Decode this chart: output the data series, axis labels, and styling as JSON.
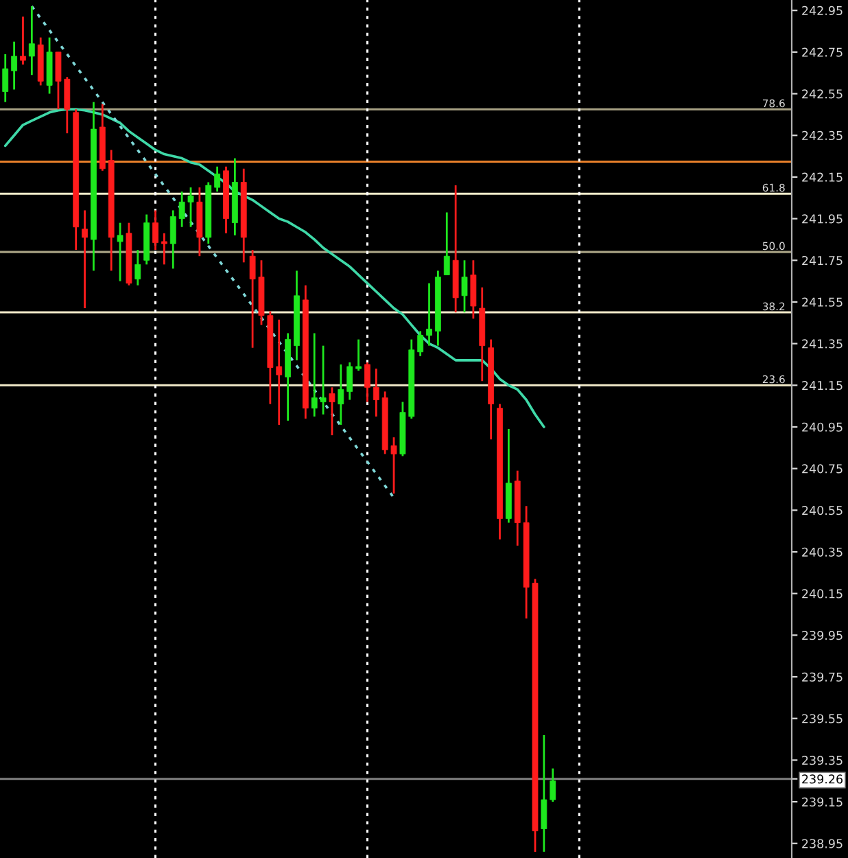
{
  "chart_data": {
    "type": "candlestick",
    "categories": [
      null,
      null,
      null,
      null,
      null,
      null,
      null,
      null,
      null,
      null,
      null,
      null,
      null,
      null,
      null,
      null,
      null,
      null,
      null,
      null,
      null,
      null,
      null,
      null,
      null,
      null,
      null,
      null,
      null,
      null,
      null,
      null,
      null,
      null,
      null,
      null,
      null,
      null,
      null,
      null,
      null,
      null,
      null,
      null,
      null,
      null,
      null,
      null,
      null,
      null,
      null,
      null,
      null,
      null,
      null,
      null,
      null,
      null,
      null,
      null,
      null,
      null,
      null
    ],
    "ohlc": [
      [
        242.56,
        242.74,
        242.51,
        242.67
      ],
      [
        242.66,
        242.8,
        242.57,
        242.73
      ],
      [
        242.73,
        242.92,
        242.69,
        242.71
      ],
      [
        242.73,
        242.97,
        242.64,
        242.79
      ],
      [
        242.785,
        242.82,
        242.59,
        242.61
      ],
      [
        242.59,
        242.82,
        242.55,
        242.75
      ],
      [
        242.75,
        242.75,
        242.475,
        242.61
      ],
      [
        242.62,
        242.63,
        242.36,
        242.475
      ],
      [
        242.46,
        242.475,
        241.8,
        241.91
      ],
      [
        241.9,
        241.99,
        241.52,
        241.86
      ],
      [
        241.85,
        242.51,
        241.7,
        242.38
      ],
      [
        242.39,
        242.5,
        242.18,
        242.19
      ],
      [
        242.23,
        242.28,
        241.7,
        241.86
      ],
      [
        241.84,
        241.93,
        241.65,
        241.87
      ],
      [
        241.88,
        241.93,
        241.63,
        241.64
      ],
      [
        241.66,
        241.8,
        241.63,
        241.73
      ],
      [
        241.75,
        241.97,
        241.73,
        241.93
      ],
      [
        241.93,
        241.99,
        241.8,
        241.835
      ],
      [
        241.84,
        241.88,
        241.73,
        241.83
      ],
      [
        241.83,
        241.99,
        241.71,
        241.96
      ],
      [
        241.95,
        242.08,
        241.91,
        242.03
      ],
      [
        242.03,
        242.1,
        241.91,
        242.06
      ],
      [
        242.03,
        242.1,
        241.77,
        241.86
      ],
      [
        241.86,
        242.125,
        241.83,
        242.11
      ],
      [
        242.1,
        242.2,
        242.08,
        242.165
      ],
      [
        242.18,
        242.2,
        241.88,
        241.95
      ],
      [
        241.93,
        242.24,
        241.87,
        242.125
      ],
      [
        242.125,
        242.19,
        241.74,
        241.86
      ],
      [
        241.77,
        241.8,
        241.33,
        241.66
      ],
      [
        241.67,
        241.75,
        241.44,
        241.485
      ],
      [
        241.485,
        241.505,
        241.06,
        241.235
      ],
      [
        241.24,
        241.465,
        240.96,
        241.2
      ],
      [
        241.19,
        241.4,
        240.98,
        241.37
      ],
      [
        241.34,
        241.7,
        241.27,
        241.58
      ],
      [
        241.56,
        241.63,
        240.99,
        241.04
      ],
      [
        241.04,
        241.4,
        241.0,
        241.09
      ],
      [
        241.07,
        241.34,
        241.01,
        241.09
      ],
      [
        241.11,
        241.14,
        240.91,
        241.07
      ],
      [
        241.06,
        241.25,
        240.96,
        241.13
      ],
      [
        241.12,
        241.26,
        241.08,
        241.24
      ],
      [
        241.23,
        241.37,
        241.22,
        241.24
      ],
      [
        241.25,
        241.26,
        241.07,
        241.14
      ],
      [
        241.14,
        241.23,
        241.0,
        241.08
      ],
      [
        241.09,
        241.12,
        240.82,
        240.84
      ],
      [
        240.86,
        240.9,
        240.63,
        240.82
      ],
      [
        240.82,
        241.07,
        240.81,
        241.02
      ],
      [
        241.0,
        241.37,
        240.99,
        241.32
      ],
      [
        241.31,
        241.41,
        241.29,
        241.39
      ],
      [
        241.39,
        241.64,
        241.34,
        241.42
      ],
      [
        241.41,
        241.7,
        241.34,
        241.67
      ],
      [
        241.68,
        241.98,
        241.68,
        241.77
      ],
      [
        241.75,
        242.11,
        241.5,
        241.57
      ],
      [
        241.58,
        241.75,
        241.5,
        241.67
      ],
      [
        241.68,
        241.75,
        241.47,
        241.53
      ],
      [
        241.52,
        241.62,
        241.17,
        241.34
      ],
      [
        241.33,
        241.37,
        240.89,
        241.06
      ],
      [
        241.04,
        241.06,
        240.41,
        240.51
      ],
      [
        240.51,
        240.94,
        240.49,
        240.68
      ],
      [
        240.69,
        240.74,
        240.38,
        240.49
      ],
      [
        240.49,
        240.57,
        240.03,
        240.18
      ],
      [
        240.2,
        240.22,
        238.91,
        239.01
      ],
      [
        239.02,
        239.47,
        238.91,
        239.16
      ],
      [
        239.16,
        239.31,
        239.15,
        239.25
      ]
    ],
    "colors": [
      "#1ee81e",
      "#1ee81e",
      "#ff1c1c",
      "#1ee81e",
      "#ff1c1c",
      "#1ee81e",
      "#ff1c1c",
      "#ff1c1c",
      "#ff1c1c",
      "#ff1c1c",
      "#1ee81e",
      "#ff1c1c",
      "#ff1c1c",
      "#1ee81e",
      "#ff1c1c",
      "#1ee81e",
      "#1ee81e",
      "#ff1c1c",
      "#ff1c1c",
      "#1ee81e",
      "#1ee81e",
      "#1ee81e",
      "#ff1c1c",
      "#1ee81e",
      "#1ee81e",
      "#ff1c1c",
      "#1ee81e",
      "#ff1c1c",
      "#ff1c1c",
      "#ff1c1c",
      "#ff1c1c",
      "#ff1c1c",
      "#1ee81e",
      "#1ee81e",
      "#ff1c1c",
      "#1ee81e",
      "#1ee81e",
      "#ff1c1c",
      "#1ee81e",
      "#1ee81e",
      "#1ee81e",
      "#ff1c1c",
      "#ff1c1c",
      "#ff1c1c",
      "#ff1c1c",
      "#1ee81e",
      "#1ee81e",
      "#1ee81e",
      "#1ee81e",
      "#1ee81e",
      "#1ee81e",
      "#ff1c1c",
      "#1ee81e",
      "#ff1c1c",
      "#ff1c1c",
      "#ff1c1c",
      "#ff1c1c",
      "#1ee81e",
      "#ff1c1c",
      "#ff1c1c",
      "#ff1c1c",
      "#1ee81e",
      "#1ee81e"
    ],
    "series": [
      {
        "type": "line",
        "color": "#3fd9a8",
        "line_style": "solid",
        "values": [
          242.3,
          242.35,
          242.4,
          242.42,
          242.44,
          242.46,
          242.47,
          242.475,
          242.475,
          242.47,
          242.46,
          242.45,
          242.43,
          242.41,
          242.37,
          242.34,
          242.31,
          242.28,
          242.26,
          242.25,
          242.24,
          242.22,
          242.21,
          242.18,
          242.15,
          242.12,
          242.08,
          242.06,
          242.04,
          242.01,
          241.98,
          241.95,
          241.935,
          241.91,
          241.885,
          241.85,
          241.81,
          241.78,
          241.75,
          241.72,
          241.68,
          241.64,
          241.6,
          241.56,
          241.52,
          241.49,
          241.44,
          241.39,
          241.35,
          241.33,
          241.3,
          241.27,
          241.27,
          241.27,
          241.27,
          241.23,
          241.18,
          241.15,
          241.13,
          241.08,
          241.01,
          240.95,
          null
        ]
      },
      {
        "type": "line",
        "color": "#7fd8d8",
        "line_style": "dotted",
        "values": [
          null,
          null,
          null,
          242.97,
          null,
          null,
          null,
          null,
          null,
          null,
          null,
          null,
          null,
          null,
          null,
          null,
          null,
          null,
          null,
          null,
          null,
          null,
          null,
          null,
          null,
          null,
          null,
          null,
          null,
          null,
          null,
          null,
          null,
          null,
          null,
          null,
          null,
          null,
          null,
          null,
          null,
          null,
          null,
          null,
          240.61,
          null,
          null,
          null,
          null,
          null,
          null,
          null,
          null,
          null,
          null,
          null,
          null,
          null,
          null,
          null,
          null,
          null,
          null
        ]
      }
    ],
    "ref_lines": [
      {
        "axis": "y",
        "value": 242.475,
        "color": "#a8a284"
      },
      {
        "axis": "y",
        "value": 242.224,
        "color": "#e8802a"
      },
      {
        "axis": "y",
        "value": 242.07,
        "color": "#f3eccb"
      },
      {
        "axis": "y",
        "value": 241.79,
        "color": "#a8a284"
      },
      {
        "axis": "y",
        "value": 241.5,
        "color": "#f3eccb"
      },
      {
        "axis": "y",
        "value": 241.15,
        "color": "#f3eccb"
      },
      {
        "axis": "y",
        "value": 239.26,
        "color": "#808080"
      }
    ],
    "annotations": [
      {
        "text": "78.6",
        "y": 242.475
      },
      {
        "text": "61.8",
        "y": 242.07
      },
      {
        "text": "50.0",
        "y": 241.79
      },
      {
        "text": "38.2",
        "y": 241.5
      },
      {
        "text": "23.6",
        "y": 241.15
      }
    ],
    "ylim": [
      238.88,
      243.0
    ],
    "yticks": [
      238.95,
      239.15,
      {
        "value": 239.26,
        "label": "239.26"
      },
      239.35,
      239.55,
      239.75,
      239.95,
      240.15,
      240.35,
      240.55,
      240.75,
      240.95,
      241.15,
      241.35,
      241.55,
      241.75,
      241.95,
      242.15,
      242.35,
      242.55,
      242.75,
      242.95
    ],
    "tick_labels": "y"
  }
}
